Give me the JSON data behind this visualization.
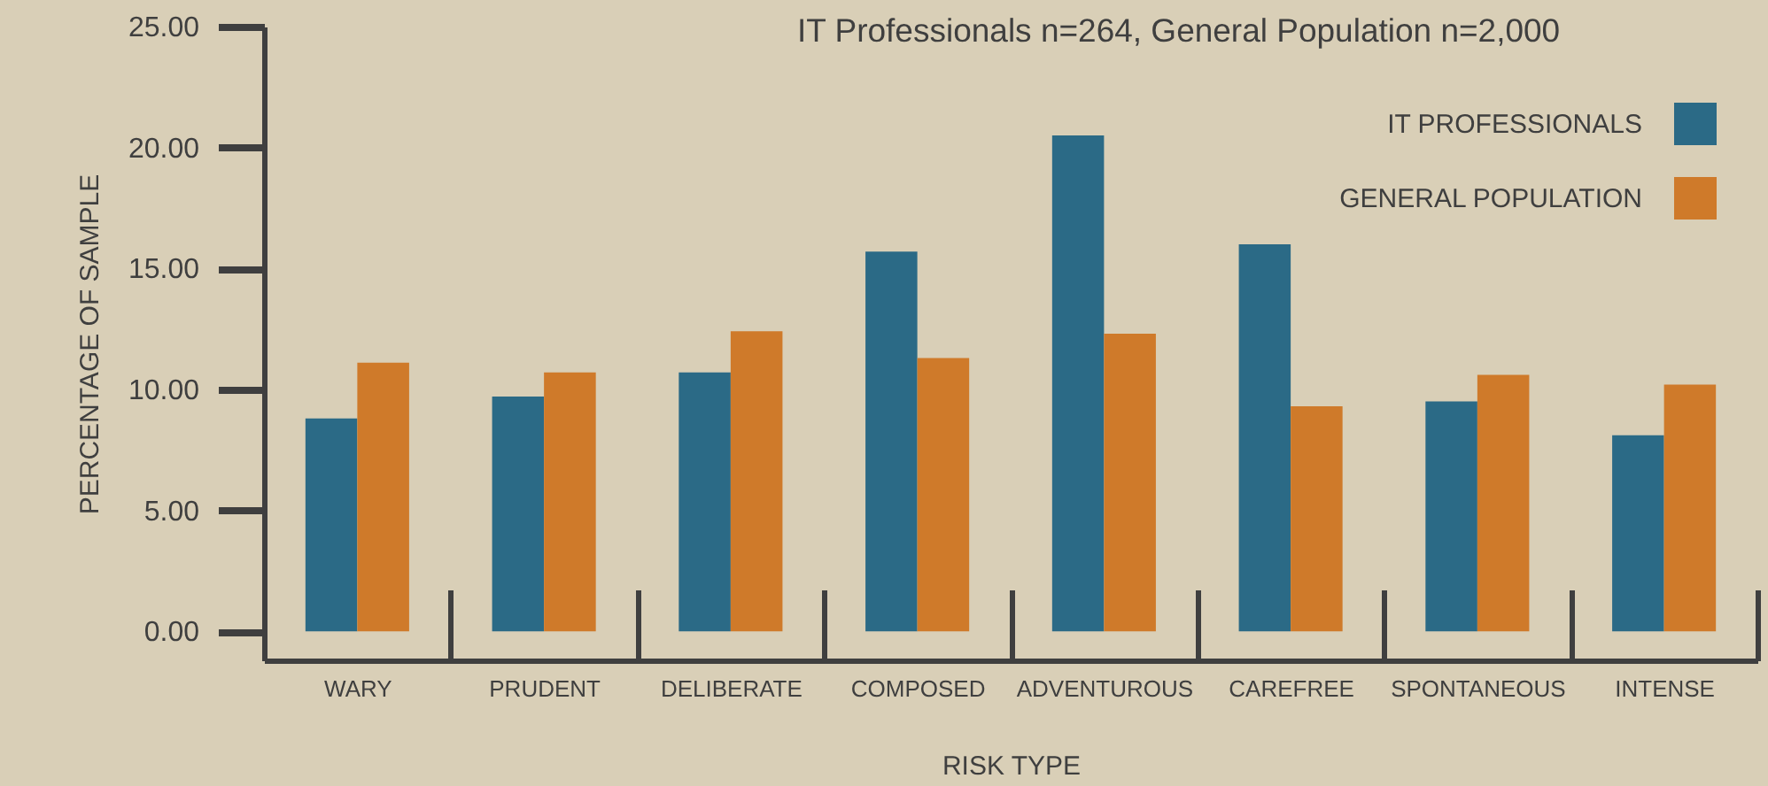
{
  "chart_data": {
    "type": "bar",
    "title": "IT Professionals n=264, General Population n=2,000",
    "xlabel": "RISK TYPE",
    "ylabel": "PERCENTAGE OF SAMPLE",
    "categories": [
      "WARY",
      "PRUDENT",
      "DELIBERATE",
      "COMPOSED",
      "ADVENTUROUS",
      "CAREFREE",
      "SPONTANEOUS",
      "INTENSE"
    ],
    "series": [
      {
        "name": "IT PROFESSIONALS",
        "color": "#2b6a86",
        "values": [
          8.8,
          9.7,
          10.7,
          15.7,
          20.5,
          16.0,
          9.5,
          8.1
        ]
      },
      {
        "name": "GENERAL POPULATION",
        "color": "#cf7a2a",
        "values": [
          11.1,
          10.7,
          12.4,
          11.3,
          12.3,
          9.3,
          10.6,
          10.2
        ]
      }
    ],
    "ylim": [
      -1.2,
      25
    ],
    "yticks": [
      {
        "value": 0,
        "label": "0.00"
      },
      {
        "value": 5,
        "label": "5.00"
      },
      {
        "value": 10,
        "label": "10.00"
      },
      {
        "value": 15,
        "label": "15.00"
      },
      {
        "value": 20,
        "label": "20.00"
      },
      {
        "value": 25,
        "label": "25.00"
      }
    ],
    "legend": "top right"
  }
}
